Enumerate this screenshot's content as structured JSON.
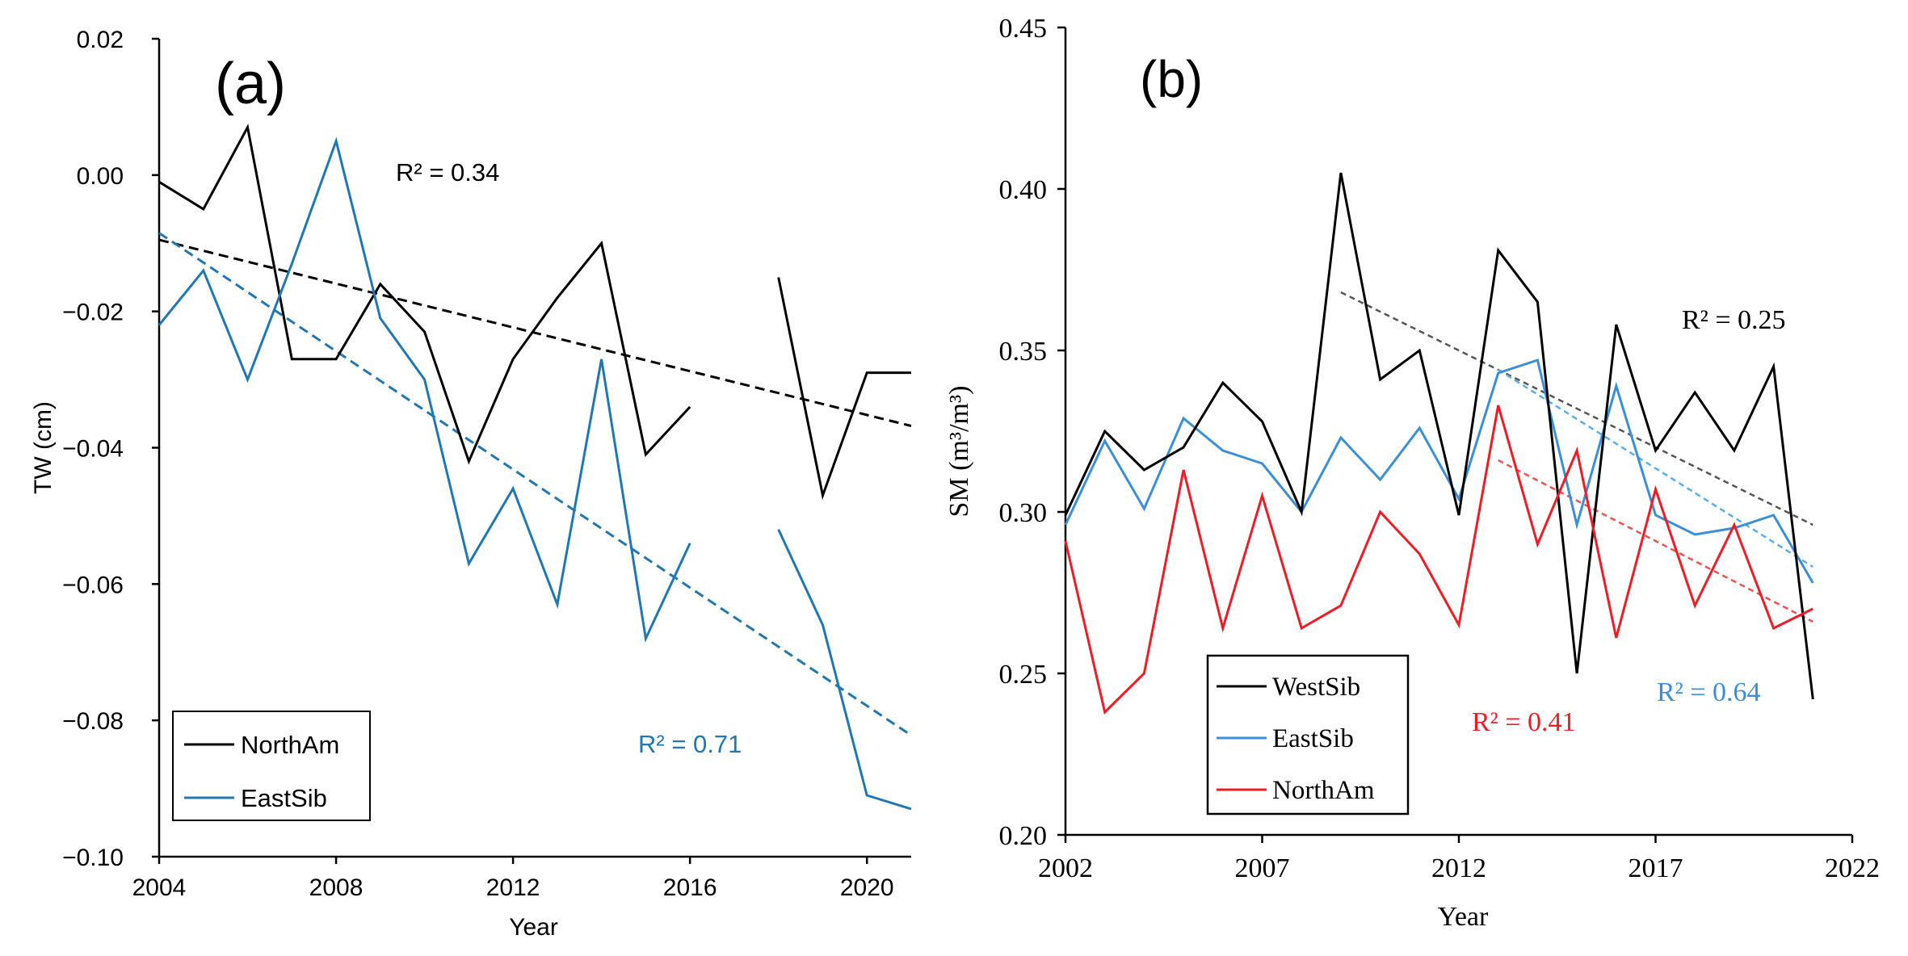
{
  "chart_data": [
    {
      "type": "line",
      "panel_label": "(a)",
      "xlabel": "Year",
      "ylabel": "TW (cm)",
      "xlim": [
        2004,
        2021
      ],
      "ylim": [
        -0.1,
        0.02
      ],
      "x_ticks": [
        2004,
        2008,
        2012,
        2016,
        2020
      ],
      "y_ticks": [
        0.02,
        0.0,
        -0.02,
        -0.04,
        -0.06,
        -0.08,
        -0.1
      ],
      "x_tick_labels": [
        "2004",
        "2008",
        "2012",
        "2016",
        "2020"
      ],
      "y_tick_labels": [
        "0.02",
        "0.00",
        "−0.02",
        "−0.04",
        "−0.06",
        "−0.08",
        "−0.10"
      ],
      "grid": false,
      "legend_position": "bottom-left",
      "series": [
        {
          "name": "NorthAm",
          "color": "#000000",
          "x": [
            2004,
            2005,
            2006,
            2007,
            2008,
            2009,
            2010,
            2011,
            2012,
            2013,
            2014,
            2015,
            2016,
            2017,
            2018,
            2019,
            2020,
            2021
          ],
          "values": [
            -0.001,
            -0.005,
            0.007,
            -0.027,
            -0.027,
            -0.016,
            -0.023,
            -0.042,
            -0.027,
            -0.018,
            -0.01,
            -0.041,
            -0.034,
            null,
            -0.015,
            -0.047,
            -0.029,
            -0.029
          ]
        },
        {
          "name": "EastSib",
          "color": "#1f77b4",
          "x": [
            2004,
            2005,
            2006,
            2007,
            2008,
            2009,
            2010,
            2011,
            2012,
            2013,
            2014,
            2015,
            2016,
            2017,
            2018,
            2019,
            2020,
            2021
          ],
          "values": [
            -0.022,
            -0.014,
            -0.03,
            -0.013,
            0.005,
            -0.021,
            -0.03,
            -0.057,
            -0.046,
            -0.063,
            -0.027,
            -0.068,
            -0.054,
            null,
            -0.052,
            -0.066,
            -0.091,
            -0.093
          ]
        }
      ],
      "trendlines": [
        {
          "series": "NorthAm",
          "x": [
            2004,
            2021
          ],
          "y": [
            -0.0095,
            -0.0368
          ],
          "color": "#000000",
          "r2_label": "R² = 0.34"
        },
        {
          "series": "EastSib",
          "x": [
            2004,
            2021
          ],
          "y": [
            -0.0085,
            -0.0822
          ],
          "color": "#1f77b4",
          "r2_label": "R² = 0.71"
        }
      ]
    },
    {
      "type": "line",
      "panel_label": "(b)",
      "xlabel": "Year",
      "ylabel": "SM (m³/m³)",
      "xlim": [
        2002,
        2022
      ],
      "ylim": [
        0.2,
        0.45
      ],
      "x_ticks": [
        2002,
        2007,
        2012,
        2017,
        2022
      ],
      "y_ticks": [
        0.2,
        0.25,
        0.3,
        0.35,
        0.4,
        0.45
      ],
      "x_tick_labels": [
        "2002",
        "2007",
        "2012",
        "2017",
        "2022"
      ],
      "y_tick_labels": [
        "0.20",
        "0.25",
        "0.30",
        "0.35",
        "0.40",
        "0.45"
      ],
      "grid": false,
      "legend_position": "bottom-left",
      "series": [
        {
          "name": "WestSib",
          "color": "#000000",
          "x": [
            2002,
            2003,
            2004,
            2005,
            2006,
            2007,
            2008,
            2009,
            2010,
            2011,
            2012,
            2013,
            2014,
            2015,
            2016,
            2017,
            2018,
            2019,
            2020,
            2021
          ],
          "values": [
            0.299,
            0.325,
            0.313,
            0.32,
            0.34,
            0.328,
            0.3,
            0.405,
            0.341,
            0.35,
            0.299,
            0.381,
            0.365,
            0.25,
            0.358,
            0.319,
            0.337,
            0.319,
            0.345,
            0.242
          ]
        },
        {
          "name": "EastSib",
          "color": "#3a8fd8",
          "x": [
            2002,
            2003,
            2004,
            2005,
            2006,
            2007,
            2008,
            2009,
            2010,
            2011,
            2012,
            2013,
            2014,
            2015,
            2016,
            2017,
            2018,
            2019,
            2020,
            2021
          ],
          "values": [
            0.296,
            0.322,
            0.301,
            0.329,
            0.319,
            0.315,
            0.3,
            0.323,
            0.31,
            0.326,
            0.304,
            0.343,
            0.347,
            0.296,
            0.339,
            0.299,
            0.293,
            0.295,
            0.299,
            0.278
          ]
        },
        {
          "name": "NorthAm",
          "color": "#ee1c25",
          "x": [
            2002,
            2003,
            2004,
            2005,
            2006,
            2007,
            2008,
            2009,
            2010,
            2011,
            2012,
            2013,
            2014,
            2015,
            2016,
            2017,
            2018,
            2019,
            2020,
            2021
          ],
          "values": [
            0.291,
            0.238,
            0.25,
            0.313,
            0.264,
            0.305,
            0.264,
            0.271,
            0.3,
            0.287,
            0.265,
            0.333,
            0.29,
            0.319,
            0.261,
            0.307,
            0.271,
            0.296,
            0.264,
            0.27
          ]
        }
      ],
      "trendlines": [
        {
          "series": "WestSib",
          "x": [
            2009,
            2021
          ],
          "y": [
            0.368,
            0.296
          ],
          "color": "#555555",
          "r2_label": "R² = 0.25"
        },
        {
          "series": "EastSib",
          "x": [
            2013,
            2021
          ],
          "y": [
            0.344,
            0.283
          ],
          "color": "#5aaee8",
          "r2_label": "R² = 0.64"
        },
        {
          "series": "NorthAm",
          "x": [
            2013,
            2021
          ],
          "y": [
            0.316,
            0.266
          ],
          "color": "#f05050",
          "r2_label": "R² = 0.41"
        }
      ]
    }
  ]
}
